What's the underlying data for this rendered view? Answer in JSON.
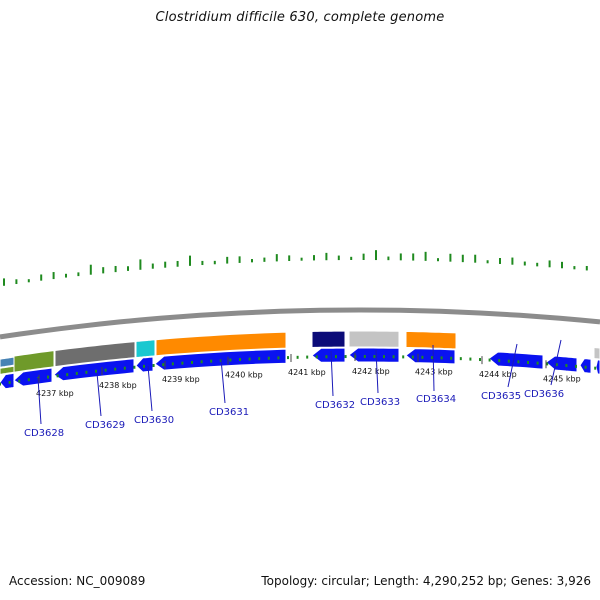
{
  "title": "Clostridium difficile 630, complete genome",
  "footer": {
    "accession": "Accession: NC_009089",
    "summary": "Topology: circular; Length: 4,290,252 bp; Genes: 3,926"
  },
  "colors": {
    "forward_gene": "#0a12f0",
    "backbone": "#8c8c8c",
    "gc_tick": "#1f8a1f",
    "label": "#1a1ab8",
    "cog_green": "#6f9a2a",
    "cog_gray": "#6e6e6e",
    "cog_cyan": "#19c8d0",
    "cog_orange": "#ff8a00",
    "cog_navy": "#0b0b78",
    "cog_lightgray": "#c4c4c4",
    "cog_steelblue": "#4682b4"
  },
  "scale": {
    "ticks": [
      "4237 kbp",
      "4238 kbp",
      "4239 kbp",
      "4240 kbp",
      "4241 kbp",
      "4242 kbp",
      "4243 kbp",
      "4244 kbp",
      "4245 kbp"
    ]
  },
  "genes": [
    {
      "name": "CD3628",
      "category": "cog_green"
    },
    {
      "name": "CD3629",
      "category": "cog_gray"
    },
    {
      "name": "CD3630",
      "category": "cog_cyan"
    },
    {
      "name": "CD3631",
      "category": "cog_orange"
    },
    {
      "name": "CD3632",
      "category": "cog_navy"
    },
    {
      "name": "CD3633",
      "category": "cog_lightgray"
    },
    {
      "name": "CD3634",
      "category": "cog_orange"
    },
    {
      "name": "CD3635",
      "category": ""
    },
    {
      "name": "CD3636",
      "category": ""
    }
  ]
}
